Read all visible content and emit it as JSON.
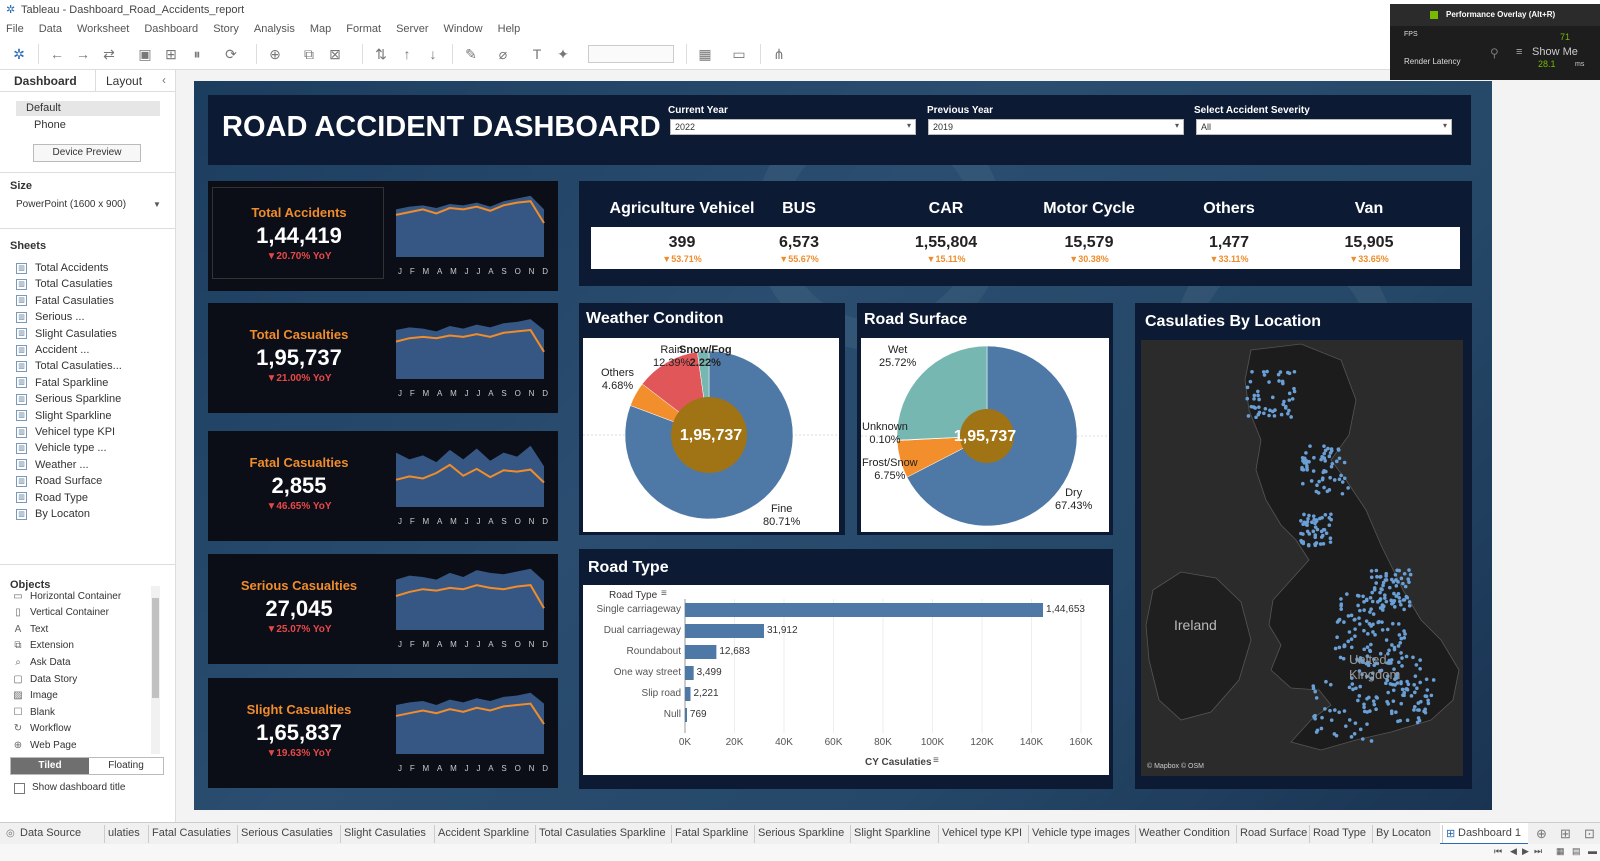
{
  "window": {
    "title": "Tableau - Dashboard_Road_Accidents_report"
  },
  "menu": [
    "File",
    "Data",
    "Worksheet",
    "Dashboard",
    "Story",
    "Analysis",
    "Map",
    "Format",
    "Server",
    "Window",
    "Help"
  ],
  "perf_overlay": {
    "title": "Performance Overlay (Alt+R)",
    "fps_label": "FPS",
    "fps_value": "71",
    "latency_label": "Render Latency",
    "latency_value": "28.1",
    "latency_unit": "ms",
    "show_me": "Show Me"
  },
  "left_panel": {
    "tabs": [
      "Dashboard",
      "Layout"
    ],
    "devices": [
      "Default",
      "Phone"
    ],
    "device_preview": "Device Preview",
    "size_heading": "Size",
    "size_value": "PowerPoint (1600 x 900)",
    "sheets_heading": "Sheets",
    "sheets": [
      "Total Accidents",
      "Total Casulaties",
      "Fatal Casulaties",
      "Serious ...",
      "Slight Casulaties",
      "Accident ...",
      "Total Casulaties...",
      "Fatal Sparkline",
      "Serious Sparkline",
      "Slight Sparkline",
      "Vehicel type KPI",
      "Vehicle type ...",
      "Weather ...",
      "Road Surface",
      "Road Type",
      "By Locaton"
    ],
    "objects_heading": "Objects",
    "objects": [
      {
        "label": "Horizontal Container",
        "icon": "▭"
      },
      {
        "label": "Vertical Container",
        "icon": "▯"
      },
      {
        "label": "Text",
        "icon": "A"
      },
      {
        "label": "Extension",
        "icon": "⧉"
      },
      {
        "label": "Ask Data",
        "icon": "⌕"
      },
      {
        "label": "Data Story",
        "icon": "▢"
      },
      {
        "label": "Image",
        "icon": "▨"
      },
      {
        "label": "Blank",
        "icon": "☐"
      },
      {
        "label": "Workflow",
        "icon": "↻"
      },
      {
        "label": "Web Page",
        "icon": "⊕"
      }
    ],
    "tiled": "Tiled",
    "floating": "Floating",
    "show_title": "Show dashboard title"
  },
  "dashboard": {
    "title": "ROAD ACCIDENT DASHBOARD",
    "filters": [
      {
        "label": "Current Year",
        "value": "2022"
      },
      {
        "label": "Previous Year",
        "value": "2019"
      },
      {
        "label": "Select Accident Severity",
        "value": "All"
      }
    ],
    "months": [
      "J",
      "F",
      "M",
      "A",
      "M",
      "J",
      "J",
      "A",
      "S",
      "O",
      "N",
      "D"
    ],
    "kpis": [
      {
        "label": "Total Accidents",
        "value": "1,44,419",
        "yoy": "▼20.70% YoY",
        "color": "#f08c2c",
        "cy": [
          0.62,
          0.66,
          0.7,
          0.64,
          0.72,
          0.7,
          0.74,
          0.68,
          0.76,
          0.8,
          0.82,
          0.5
        ],
        "py": [
          0.7,
          0.74,
          0.76,
          0.72,
          0.78,
          0.76,
          0.8,
          0.74,
          0.82,
          0.86,
          0.9,
          0.7
        ]
      },
      {
        "label": "Total Casualties",
        "value": "1,95,737",
        "yoy": "▼21.00% YoY",
        "color": "#f08c2c",
        "cy": [
          0.55,
          0.6,
          0.62,
          0.6,
          0.64,
          0.62,
          0.66,
          0.62,
          0.68,
          0.7,
          0.72,
          0.4
        ],
        "py": [
          0.72,
          0.76,
          0.74,
          0.7,
          0.78,
          0.74,
          0.8,
          0.76,
          0.82,
          0.84,
          0.88,
          0.72
        ]
      },
      {
        "label": "Fatal Casualties",
        "value": "2,855",
        "yoy": "▼46.65% YoY",
        "color": "#f08c2c",
        "cy": [
          0.4,
          0.45,
          0.42,
          0.5,
          0.62,
          0.46,
          0.56,
          0.44,
          0.54,
          0.52,
          0.55,
          0.36
        ],
        "py": [
          0.8,
          0.7,
          0.76,
          0.66,
          0.84,
          0.7,
          0.86,
          0.68,
          0.8,
          0.74,
          0.9,
          0.6
        ]
      },
      {
        "label": "Serious Casualties",
        "value": "27,045",
        "yoy": "▼25.07% YoY",
        "color": "#f08c2c",
        "cy": [
          0.5,
          0.56,
          0.6,
          0.58,
          0.62,
          0.6,
          0.66,
          0.62,
          0.6,
          0.64,
          0.66,
          0.32
        ],
        "py": [
          0.74,
          0.8,
          0.78,
          0.74,
          0.84,
          0.78,
          0.88,
          0.84,
          0.82,
          0.86,
          0.9,
          0.72
        ]
      },
      {
        "label": "Slight Casualties",
        "value": "1,65,837",
        "yoy": "▼19.63% YoY",
        "color": "#f08c2c",
        "cy": [
          0.56,
          0.6,
          0.64,
          0.6,
          0.66,
          0.62,
          0.68,
          0.64,
          0.7,
          0.72,
          0.74,
          0.44
        ],
        "py": [
          0.72,
          0.76,
          0.78,
          0.72,
          0.8,
          0.76,
          0.82,
          0.78,
          0.84,
          0.86,
          0.9,
          0.74
        ]
      }
    ],
    "vehicles": [
      {
        "name": "Agriculture Vehicel",
        "value": "399",
        "yoy": "▼53.71%"
      },
      {
        "name": "BUS",
        "value": "6,573",
        "yoy": "▼55.67%"
      },
      {
        "name": "CAR",
        "value": "1,55,804",
        "yoy": "▼15.11%"
      },
      {
        "name": "Motor Cycle",
        "value": "15,579",
        "yoy": "▼30.38%"
      },
      {
        "name": "Others",
        "value": "1,477",
        "yoy": "▼33.11%"
      },
      {
        "name": "Van",
        "value": "15,905",
        "yoy": "▼33.65%"
      }
    ],
    "weather": {
      "title": "Weather Conditon",
      "center": "1,95,737",
      "labels": [
        {
          "name": "Rain",
          "pct": "12.39%"
        },
        {
          "name": "Snow/Fog",
          "pct": "2.22%"
        },
        {
          "name": "Others",
          "pct": "4.68%"
        },
        {
          "name": "Fine",
          "pct": "80.71%"
        }
      ]
    },
    "surface": {
      "title": "Road Surface",
      "center": "1,95,737",
      "labels": [
        {
          "name": "Wet",
          "pct": "25.72%"
        },
        {
          "name": "Unknown",
          "pct": "0.10%"
        },
        {
          "name": "Frost/Snow",
          "pct": "6.75%"
        },
        {
          "name": "Dry",
          "pct": "67.43%"
        }
      ]
    },
    "location": {
      "title": "Casulaties By Location",
      "map_labels": [
        "Ireland",
        "United Kingdom"
      ],
      "attribution": "© Mapbox © OSM"
    },
    "road_type": {
      "title": "Road Type",
      "header": "Road Type",
      "axis_title": "CY Casulaties"
    }
  },
  "chart_data": [
    {
      "type": "pie",
      "title": "Weather Conditon",
      "categories": [
        "Fine",
        "Others",
        "Rain",
        "Snow/Fog"
      ],
      "values": [
        80.71,
        4.68,
        12.39,
        2.22
      ],
      "colors": [
        "#4e79a7",
        "#f28e2b",
        "#e15759",
        "#76b7b2"
      ]
    },
    {
      "type": "pie",
      "title": "Road Surface",
      "categories": [
        "Dry",
        "Frost/Snow",
        "Unknown",
        "Wet"
      ],
      "values": [
        67.43,
        6.75,
        0.1,
        25.72
      ],
      "colors": [
        "#4e79a7",
        "#f28e2b",
        "#e15759",
        "#76b7b2"
      ]
    },
    {
      "type": "bar",
      "title": "Road Type",
      "categories": [
        "Single carriageway",
        "Dual carriageway",
        "Roundabout",
        "One way street",
        "Slip road",
        "Null"
      ],
      "values": [
        144653,
        31912,
        12683,
        3499,
        2221,
        769
      ],
      "value_labels": [
        "1,44,653",
        "31,912",
        "12,683",
        "3,499",
        "2,221",
        "769"
      ],
      "xlabel": "CY Casulaties",
      "xlim": [
        0,
        160000
      ],
      "ticks": [
        "0K",
        "20K",
        "40K",
        "60K",
        "80K",
        "100K",
        "120K",
        "140K",
        "160K"
      ]
    }
  ],
  "sheet_tabs": [
    "Data Source",
    "ulaties",
    "Fatal Casulaties",
    "Serious Casulaties",
    "Slight Casulaties",
    "Accident Sparkline",
    "Total Casulaties Sparkline",
    "Fatal Sparkline",
    "Serious Sparkline",
    "Slight Sparkline",
    "Vehicel type KPI",
    "Vehicle type images",
    "Weather Condition",
    "Road Surface",
    "Road Type",
    "By Locaton",
    "Dashboard 1"
  ]
}
